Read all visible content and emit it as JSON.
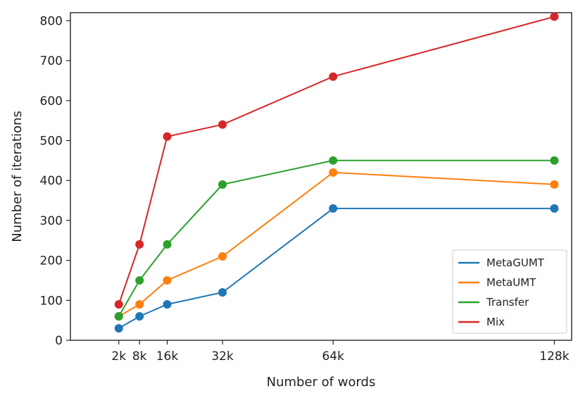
{
  "chart_data": {
    "type": "line",
    "title": "",
    "xlabel": "Number of words",
    "ylabel": "Number of iterations",
    "x": [
      2,
      8,
      16,
      32,
      64,
      128
    ],
    "x_tick_labels": [
      "2k",
      "8k",
      "16k",
      "32k",
      "64k",
      "128k"
    ],
    "y_ticks": [
      0,
      100,
      200,
      300,
      400,
      500,
      600,
      700,
      800
    ],
    "xlim": [
      -12,
      133
    ],
    "ylim": [
      0,
      820
    ],
    "grid": false,
    "legend_position": "lower-right",
    "series": [
      {
        "name": "MetaGUMT",
        "color": "#1f77b4",
        "values": [
          30,
          60,
          90,
          120,
          330,
          330
        ]
      },
      {
        "name": "MetaUMT",
        "color": "#ff7f0e",
        "values": [
          60,
          90,
          150,
          210,
          420,
          390
        ]
      },
      {
        "name": "Transfer",
        "color": "#2ca02c",
        "values": [
          60,
          150,
          240,
          390,
          450,
          450
        ]
      },
      {
        "name": "Mix",
        "color": "#d62728",
        "values": [
          90,
          240,
          510,
          540,
          660,
          810
        ]
      }
    ]
  }
}
